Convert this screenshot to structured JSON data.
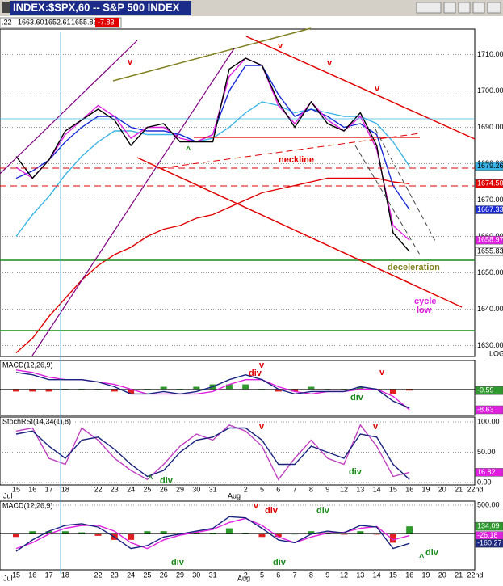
{
  "chart_data": [
    {
      "type": "line",
      "title": "INDEX:$SPX,60 -- S&P 500 INDEX",
      "quote": [
        ".22",
        "1663.60",
        "1652.61",
        "1655.83",
        "-7.83"
      ],
      "categories": [
        "15",
        "16",
        "17",
        "18",
        null,
        "22",
        "23",
        "24",
        "25",
        "26",
        "29",
        "30",
        "31",
        null,
        "2",
        "5",
        "6",
        "7",
        "8",
        "9",
        "12",
        "13",
        "14",
        "15",
        "16",
        "19",
        "20",
        "21",
        "22nd"
      ],
      "x_months": [
        "Jul",
        "Aug"
      ],
      "ylim": [
        1627,
        1717
      ],
      "yticks": [
        {
          "value": 1630,
          "label": "1630.00"
        },
        {
          "value": 1640,
          "label": "1640.00"
        },
        {
          "value": 1650,
          "label": "1650.00"
        },
        {
          "value": 1660,
          "label": "1660.00"
        },
        {
          "value": 1670,
          "label": "1670.00"
        },
        {
          "value": 1680,
          "label": "1680.00"
        },
        {
          "value": 1690,
          "label": "1690.00"
        },
        {
          "value": 1700,
          "label": "1700.00"
        },
        {
          "value": 1710,
          "label": "1710.00"
        }
      ],
      "log_label": "LOG",
      "series": [
        {
          "color": "#e00000",
          "values": [
            1628,
            1632,
            1638,
            1643,
            1648,
            1652,
            1655,
            1657,
            1660,
            1662,
            1663,
            1665,
            1666,
            1668,
            1670,
            1672,
            1673,
            1674,
            1675,
            1676,
            1676,
            1676,
            1676,
            1675,
            1674.5,
            null,
            null,
            null,
            null
          ]
        },
        {
          "color": "#3cb4e6",
          "values": [
            1660,
            1666,
            1671,
            1677,
            1682,
            1686,
            1689,
            1689,
            1688,
            1688,
            1688,
            1686,
            1687,
            1690,
            1694,
            1697,
            1696,
            1694,
            1695,
            1694,
            1693,
            1693,
            1691,
            1686,
            1679.26,
            null,
            null,
            null,
            null
          ]
        },
        {
          "color": "#1a2bd6",
          "values": [
            1676,
            1678,
            1681,
            1686,
            1690,
            1693,
            1693,
            1690,
            1689,
            1689,
            1688,
            1686,
            1688,
            1700,
            1707,
            1707,
            1699,
            1693,
            1695,
            1693,
            1690,
            1691,
            1688,
            1674,
            1667.33,
            null,
            null,
            null,
            null
          ]
        },
        {
          "color": "#e020e0",
          "values": [
            1679,
            1676,
            1681,
            1688,
            1692,
            1696,
            1693,
            1687,
            1690,
            1690,
            1687,
            1686,
            1688,
            1704,
            1709,
            1707,
            1696,
            1691,
            1697,
            1692,
            1689,
            1693,
            1684,
            1663,
            1658.97,
            null,
            null,
            null,
            null
          ]
        },
        {
          "color": "#000000",
          "values": [
            1682,
            1676,
            1681,
            1689,
            1692,
            1695,
            1692,
            1685,
            1690,
            1691,
            1686,
            1686,
            1686,
            1706,
            1709,
            1707,
            1697,
            1690,
            1697,
            1691,
            1689,
            1694,
            1685,
            1661,
            1655.83,
            null,
            null,
            null,
            null
          ]
        }
      ],
      "price_tags": [
        {
          "value": 1679.26,
          "label": "1679.26",
          "color": "#3cb4e6"
        },
        {
          "value": 1674.5,
          "label": "1674.50",
          "color": "#e00000"
        },
        {
          "value": 1667.33,
          "label": "1667.33",
          "color": "#1a2bd6"
        },
        {
          "value": 1658.97,
          "label": "1658.97",
          "color": "#e020e0"
        },
        {
          "value": 1655.83,
          "label": "1655.83",
          "color": "#ffffff"
        }
      ],
      "annotations": [
        "v",
        "v",
        "v",
        "v",
        "neckline",
        "deceleration",
        "cycle",
        "low",
        "^"
      ]
    },
    {
      "type": "line",
      "title": "MACD(12,26,9)",
      "ylim": [
        -11,
        12
      ],
      "series": [
        {
          "kind": "bar",
          "color": "#2e9a2e",
          "negative_color": "#e02020",
          "values": [
            -1,
            -1,
            -1,
            0,
            0,
            0,
            -1,
            -2,
            0,
            1,
            0,
            1,
            2,
            2,
            2,
            0,
            -1,
            -1,
            1,
            0,
            0,
            1,
            0,
            -2,
            -0.59,
            null,
            null,
            null,
            null
          ]
        },
        {
          "color": "#e020e0",
          "values": [
            8,
            7,
            5,
            4,
            4,
            3,
            2,
            0,
            -2,
            -2,
            -2,
            -2,
            -1,
            2,
            4,
            4,
            1,
            -1,
            -2,
            -1,
            -1,
            0,
            0,
            -3,
            -8.63,
            null,
            null,
            null,
            null
          ]
        },
        {
          "color": "#1a237e",
          "values": [
            7,
            6,
            4,
            4,
            4,
            3,
            1,
            -2,
            -2,
            -1,
            -2,
            -1,
            1,
            4,
            6,
            4,
            0,
            -2,
            -1,
            -1,
            -1,
            1,
            0,
            -5,
            -7.9,
            null,
            null,
            null,
            null
          ]
        }
      ],
      "price_tags": [
        {
          "value": -0.59,
          "label": "-0.59",
          "color": "#2e9a2e"
        },
        {
          "value": -8.63,
          "label": "-8.63",
          "color": "#e020e0"
        }
      ],
      "annotations": [
        "v",
        "div",
        "v",
        "div"
      ]
    },
    {
      "type": "line",
      "title": "StochRSI(14,34(1),8)",
      "ylim": [
        -4,
        108
      ],
      "yticks": [
        {
          "value": 0,
          "label": "0.00"
        },
        {
          "value": 50,
          "label": "50.00"
        },
        {
          "value": 100,
          "label": "100.00"
        }
      ],
      "series": [
        {
          "color": "#c040c0",
          "values": [
            85,
            90,
            40,
            30,
            90,
            70,
            40,
            20,
            5,
            30,
            60,
            80,
            70,
            95,
            85,
            60,
            5,
            40,
            70,
            40,
            30,
            95,
            60,
            10,
            16.82,
            null,
            null,
            null,
            null
          ]
        },
        {
          "color": "#1a237e",
          "values": [
            80,
            85,
            60,
            40,
            70,
            75,
            55,
            30,
            10,
            20,
            50,
            70,
            75,
            90,
            90,
            70,
            30,
            30,
            60,
            50,
            40,
            80,
            75,
            30,
            5,
            null,
            null,
            null,
            null
          ]
        }
      ],
      "price_tags": [
        {
          "value": 16.82,
          "label": "16.82",
          "color": "#e020e0"
        }
      ],
      "annotations": [
        "^",
        "div",
        "v",
        "div",
        "v"
      ]
    },
    {
      "type": "line",
      "title": "MACD(12,26,9)",
      "ylim": [
        -620,
        570
      ],
      "yticks": [
        {
          "value": 500,
          "label": "500.00"
        }
      ],
      "series": [
        {
          "kind": "bar",
          "color": "#2e9a2e",
          "negative_color": "#e02020",
          "values": [
            -50,
            50,
            50,
            50,
            30,
            -30,
            -100,
            -100,
            50,
            50,
            20,
            20,
            20,
            100,
            10,
            -50,
            -50,
            0,
            50,
            30,
            -10,
            50,
            -10,
            -150,
            134.09,
            null,
            null,
            null,
            null
          ]
        },
        {
          "color": "#e020e0",
          "values": [
            -250,
            -150,
            0,
            100,
            150,
            150,
            50,
            -150,
            -250,
            -100,
            -20,
            30,
            80,
            200,
            270,
            150,
            -50,
            -150,
            -50,
            20,
            30,
            100,
            130,
            -100,
            -26.18,
            null,
            null,
            null,
            null
          ]
        },
        {
          "color": "#1a237e",
          "values": [
            -300,
            -100,
            50,
            150,
            180,
            120,
            -50,
            -250,
            -200,
            -50,
            0,
            50,
            100,
            300,
            280,
            100,
            -100,
            -150,
            0,
            50,
            20,
            150,
            120,
            -250,
            -160.27,
            null,
            null,
            null,
            null
          ]
        }
      ],
      "price_tags": [
        {
          "value": 134.09,
          "label": "134.09",
          "color": "#2e9a2e"
        },
        {
          "value": -26.18,
          "label": "-26.18",
          "color": "#e020e0"
        },
        {
          "value": -160.27,
          "label": "-160.27",
          "color": "#1a237e"
        }
      ],
      "annotations": [
        "v",
        "div",
        "div",
        "div",
        "div",
        "^",
        "div"
      ]
    }
  ]
}
